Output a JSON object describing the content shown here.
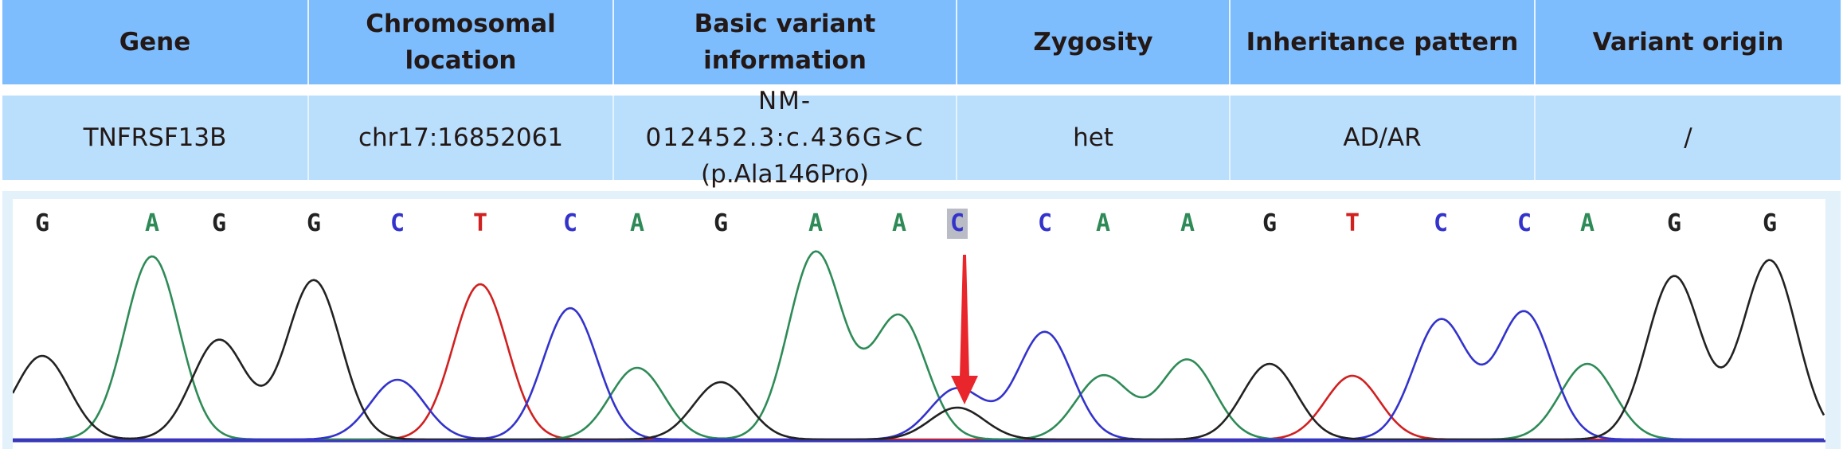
{
  "table": {
    "headers": [
      "Gene",
      "Chromosomal location",
      "Basic variant information",
      "Zygosity",
      "Inheritance pattern",
      "Variant origin"
    ],
    "header_lines": {
      "chromosomal_location": [
        "Chromosomal",
        "location"
      ],
      "basic_variant_information": [
        "Basic variant",
        "information"
      ]
    },
    "row": {
      "gene": "TNFRSF13B",
      "chromosomal_location": "chr17:16852061",
      "variant_line1": "NM- 012452.3:c.436G>C",
      "variant_line2": "(p.Ala146Pro)",
      "zygosity": "het",
      "inheritance_pattern": "AD/AR",
      "variant_origin": "/"
    }
  },
  "chromatogram": {
    "sequence": [
      "G",
      "A",
      "G",
      "G",
      "C",
      "T",
      "C",
      "A",
      "G",
      "A",
      "A",
      "C",
      "C",
      "A",
      "A",
      "G",
      "T",
      "C",
      "C",
      "A",
      "G",
      "G"
    ],
    "highlighted_index": 11,
    "highlighted_base": "C",
    "marker": "red-arrow",
    "colors": {
      "A": "#2e8b57",
      "C": "#3333cc",
      "G": "#222222",
      "T": "#d12020",
      "arrow": "#e8262b",
      "highlight_bg": "#b9bcc4",
      "panel_bg": "#e3f1fb",
      "header_bg": "#7dbdfd",
      "row_bg": "#b9dffd"
    }
  }
}
